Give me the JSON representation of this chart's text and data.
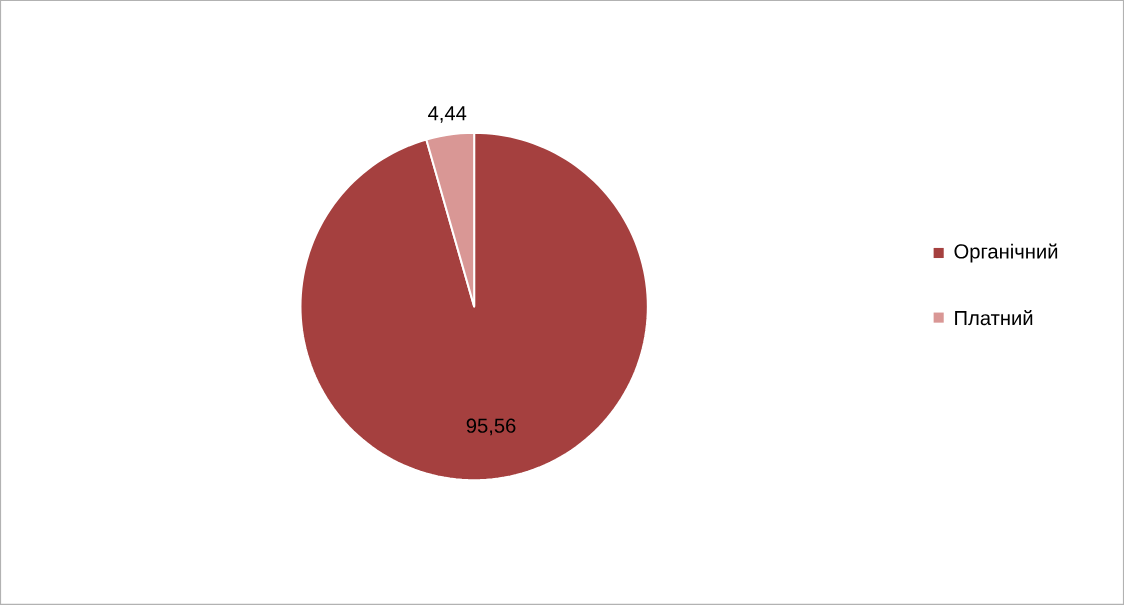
{
  "chart_data": {
    "type": "pie",
    "categories": [
      "Органічний",
      "Платний"
    ],
    "values": [
      95.56,
      4.44
    ],
    "colors": [
      "#a5403f",
      "#d99795"
    ],
    "value_labels": [
      "95,56",
      "4,44"
    ],
    "legend": "right"
  }
}
